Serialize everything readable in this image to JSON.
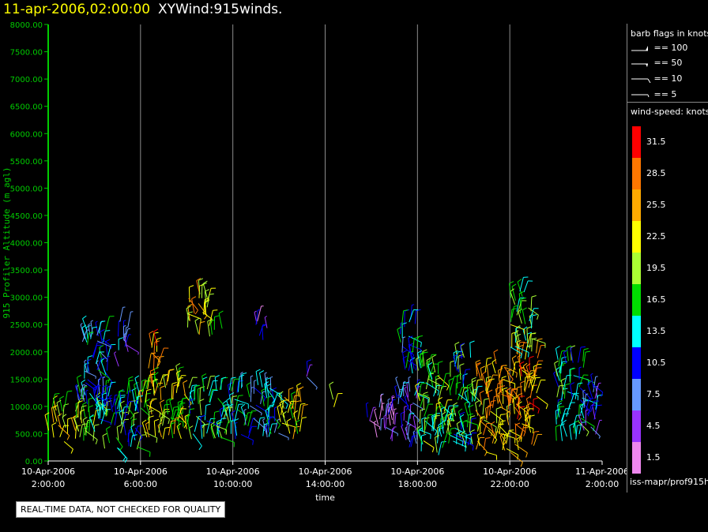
{
  "header": {
    "date_label": "11-apr-2006,02:00:00",
    "product_label": "XYWind:915winds."
  },
  "legend": {
    "barb_title": "barb flags in knots",
    "barb_items": [
      "== 100",
      "== 50",
      "== 10",
      "== 5"
    ],
    "speed_title": "wind-speed: knots",
    "speed_bins": [
      {
        "label": "31.5",
        "color": "#ff0000"
      },
      {
        "label": "28.5",
        "color": "#ff7700"
      },
      {
        "label": "25.5",
        "color": "#ffaa00"
      },
      {
        "label": "22.5",
        "color": "#ffff00"
      },
      {
        "label": "19.5",
        "color": "#aaff33"
      },
      {
        "label": "16.5",
        "color": "#00dd00"
      },
      {
        "label": "13.5",
        "color": "#00ffff"
      },
      {
        "label": "10.5",
        "color": "#0000ff"
      },
      {
        "label": "7.5",
        "color": "#6699ff"
      },
      {
        "label": "4.5",
        "color": "#9933ff"
      },
      {
        "label": "1.5",
        "color": "#ee88ee"
      }
    ]
  },
  "footer": {
    "qc_notice": "REAL-TIME DATA, NOT CHECKED FOR QUALITY",
    "source_label": "iss-mapr/prof915h"
  },
  "chart_data": {
    "type": "scatter",
    "title": "XYWind:915winds.",
    "xlabel": "time",
    "ylabel": "915 Profiler Altitude (m agl)",
    "ylim": [
      0,
      8000
    ],
    "xlim_hours": [
      0,
      24
    ],
    "y_ticks": [
      "0.00",
      "500.00",
      "1000.00",
      "1500.00",
      "2000.00",
      "2500.00",
      "3000.00",
      "3500.00",
      "4000.00",
      "4500.00",
      "5000.00",
      "5500.00",
      "6000.00",
      "6500.00",
      "7000.00",
      "7500.00",
      "8000.00"
    ],
    "x_ticks": [
      {
        "hour": 0,
        "label1": "10-Apr-2006",
        "label2": "2:00:00"
      },
      {
        "hour": 4,
        "label1": "10-Apr-2006",
        "label2": "6:00:00"
      },
      {
        "hour": 8,
        "label1": "10-Apr-2006",
        "label2": "10:00:00"
      },
      {
        "hour": 12,
        "label1": "10-Apr-2006",
        "label2": "14:00:00"
      },
      {
        "hour": 16,
        "label1": "10-Apr-2006",
        "label2": "18:00:00"
      },
      {
        "hour": 20,
        "label1": "10-Apr-2006",
        "label2": "22:00:00"
      },
      {
        "hour": 24,
        "label1": "11-Apr-2006",
        "label2": "2:00:00"
      }
    ],
    "grid": "vertical",
    "series": [
      {
        "t0": 0.0,
        "t1": 2.0,
        "zmin": 350,
        "zmax": 1000,
        "speed": 20
      },
      {
        "t0": 1.3,
        "t1": 2.6,
        "zmin": 900,
        "zmax": 2450,
        "speed": 11
      },
      {
        "t0": 2.0,
        "t1": 4.0,
        "zmin": 200,
        "zmax": 1300,
        "speed": 14
      },
      {
        "t0": 3.0,
        "t1": 3.5,
        "zmin": 1700,
        "zmax": 2600,
        "speed": 8
      },
      {
        "t0": 4.0,
        "t1": 6.0,
        "zmin": 400,
        "zmax": 1500,
        "speed": 21
      },
      {
        "t0": 4.3,
        "t1": 4.8,
        "zmin": 1300,
        "zmax": 2200,
        "speed": 27
      },
      {
        "t0": 6.0,
        "t1": 8.0,
        "zmin": 400,
        "zmax": 1350,
        "speed": 16
      },
      {
        "t0": 6.0,
        "t1": 7.0,
        "zmin": 2300,
        "zmax": 3100,
        "speed": 23
      },
      {
        "t0": 7.0,
        "t1": 7.6,
        "zmin": 2250,
        "zmax": 2500,
        "speed": 20
      },
      {
        "t0": 8.0,
        "t1": 10.0,
        "zmin": 400,
        "zmax": 1400,
        "speed": 12
      },
      {
        "t0": 9.0,
        "t1": 9.5,
        "zmin": 2200,
        "zmax": 2600,
        "speed": 6
      },
      {
        "t0": 10.0,
        "t1": 11.0,
        "zmin": 400,
        "zmax": 1200,
        "speed": 22
      },
      {
        "t0": 11.0,
        "t1": 11.6,
        "zmin": 1500,
        "zmax": 1650,
        "speed": 8
      },
      {
        "t0": 12.0,
        "t1": 12.4,
        "zmin": 950,
        "zmax": 1150,
        "speed": 22
      },
      {
        "t0": 13.8,
        "t1": 15.0,
        "zmin": 300,
        "zmax": 1000,
        "speed": 5
      },
      {
        "t0": 15.0,
        "t1": 16.0,
        "zmin": 200,
        "zmax": 1300,
        "speed": 8
      },
      {
        "t0": 15.2,
        "t1": 16.0,
        "zmin": 1600,
        "zmax": 2600,
        "speed": 12
      },
      {
        "t0": 16.0,
        "t1": 17.5,
        "zmin": 100,
        "zmax": 1800,
        "speed": 17
      },
      {
        "t0": 17.5,
        "t1": 18.5,
        "zmin": 200,
        "zmax": 1900,
        "speed": 15
      },
      {
        "t0": 18.5,
        "t1": 20.0,
        "zmin": 150,
        "zmax": 1800,
        "speed": 25
      },
      {
        "t0": 20.0,
        "t1": 21.2,
        "zmin": 150,
        "zmax": 2000,
        "speed": 26
      },
      {
        "t0": 20.0,
        "t1": 21.0,
        "zmin": 2000,
        "zmax": 3200,
        "speed": 17
      },
      {
        "t0": 22.0,
        "t1": 23.2,
        "zmin": 300,
        "zmax": 1900,
        "speed": 14
      },
      {
        "t0": 23.2,
        "t1": 23.8,
        "zmin": 400,
        "zmax": 1500,
        "speed": 9
      }
    ]
  }
}
